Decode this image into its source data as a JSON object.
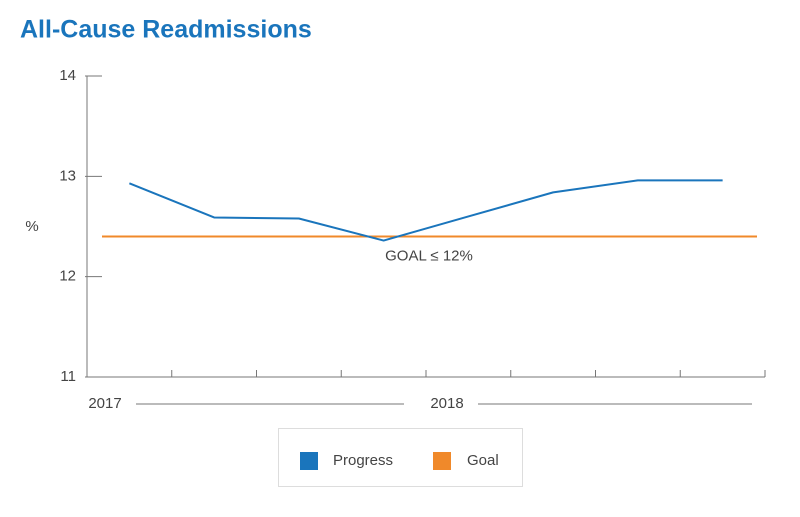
{
  "chart_data": {
    "type": "line",
    "title": "All-Cause Readmissions",
    "y_label": "%",
    "categories": [
      null,
      null,
      null,
      null,
      null,
      null,
      null,
      null
    ],
    "period_labels": [
      "2017",
      "2018"
    ],
    "series": [
      {
        "name": "Progress",
        "color": "#1a75bc",
        "values": [
          12.93,
          12.59,
          12.58,
          12.36,
          12.6,
          12.84,
          12.96,
          12.96
        ]
      },
      {
        "name": "Goal",
        "color": "#f0892a",
        "value": 12.4
      }
    ],
    "annotation": "GOAL ≤ 12%",
    "ylim": [
      11,
      14
    ],
    "yticks": [
      11,
      12,
      13,
      14
    ]
  }
}
